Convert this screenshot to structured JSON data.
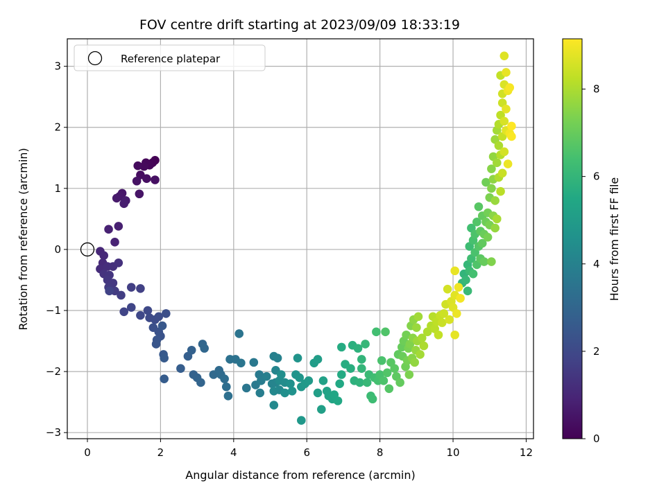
{
  "chart_data": {
    "type": "scatter",
    "title": "FOV centre drift starting at 2023/09/09 18:33:19",
    "xlabel": "Angular distance from reference (arcmin)",
    "ylabel": "Rotation from reference (arcmin)",
    "xlim": [
      -0.55,
      12.2
    ],
    "ylim": [
      -3.1,
      3.45
    ],
    "xticks": [
      0,
      2,
      4,
      6,
      8,
      10,
      12
    ],
    "xtick_labels": [
      "0",
      "2",
      "4",
      "6",
      "8",
      "10",
      "12"
    ],
    "yticks": [
      -3,
      -2,
      -1,
      0,
      1,
      2,
      3
    ],
    "ytick_labels": [
      "−3",
      "−2",
      "−1",
      "0",
      "1",
      "2",
      "3"
    ],
    "grid": true,
    "legend": {
      "placement": "upper-left",
      "entries": [
        {
          "label": "Reference platepar",
          "marker": "open-circle"
        }
      ]
    },
    "reference_point": [
      0,
      0
    ],
    "colorbar": {
      "label": "Hours from first FF file",
      "colormap": "viridis",
      "range": [
        0,
        9.15
      ],
      "ticks": [
        0,
        2,
        4,
        6,
        8
      ],
      "tick_labels": [
        "0",
        "2",
        "4",
        "6",
        "8"
      ]
    },
    "series": [
      {
        "color_by": "hours_from_first_ff_file",
        "points": [
          [
            1.85,
            1.46,
            0.0
          ],
          [
            1.78,
            1.42,
            0.05
          ],
          [
            1.7,
            1.38,
            0.1
          ],
          [
            1.6,
            1.42,
            0.15
          ],
          [
            1.55,
            1.36,
            0.2
          ],
          [
            1.38,
            1.37,
            0.25
          ],
          [
            1.45,
            1.22,
            0.3
          ],
          [
            1.62,
            1.16,
            0.35
          ],
          [
            1.85,
            1.14,
            0.4
          ],
          [
            1.35,
            1.12,
            0.45
          ],
          [
            1.42,
            0.91,
            0.5
          ],
          [
            0.95,
            0.92,
            0.55
          ],
          [
            0.88,
            0.87,
            0.6
          ],
          [
            0.8,
            0.84,
            0.65
          ],
          [
            1.05,
            0.8,
            0.7
          ],
          [
            1.0,
            0.75,
            0.75
          ],
          [
            0.85,
            0.38,
            0.8
          ],
          [
            0.58,
            0.33,
            0.85
          ],
          [
            0.75,
            0.12,
            0.9
          ],
          [
            0.35,
            -0.03,
            1.0
          ],
          [
            0.45,
            -0.1,
            1.05
          ],
          [
            0.42,
            -0.22,
            1.1
          ],
          [
            0.35,
            -0.32,
            1.15
          ],
          [
            0.55,
            -0.28,
            1.2
          ],
          [
            0.7,
            -0.28,
            1.25
          ],
          [
            0.85,
            -0.22,
            1.3
          ],
          [
            0.45,
            -0.4,
            1.35
          ],
          [
            0.6,
            -0.42,
            1.4
          ],
          [
            0.55,
            -0.5,
            1.45
          ],
          [
            0.7,
            -0.55,
            1.5
          ],
          [
            0.58,
            -0.62,
            1.55
          ],
          [
            0.75,
            -0.68,
            1.6
          ],
          [
            0.92,
            -0.75,
            1.65
          ],
          [
            1.2,
            -0.62,
            1.7
          ],
          [
            1.45,
            -0.64,
            1.75
          ],
          [
            0.6,
            -0.68,
            1.8
          ],
          [
            1.0,
            -1.02,
            1.85
          ],
          [
            1.2,
            -0.95,
            1.9
          ],
          [
            1.45,
            -1.08,
            1.95
          ],
          [
            1.65,
            -1.0,
            2.0
          ],
          [
            1.7,
            -1.12,
            2.05
          ],
          [
            1.85,
            -1.15,
            2.1
          ],
          [
            1.95,
            -1.1,
            2.15
          ],
          [
            2.15,
            -1.05,
            2.2
          ],
          [
            1.8,
            -1.28,
            2.25
          ],
          [
            1.95,
            -1.35,
            2.3
          ],
          [
            2.0,
            -1.42,
            2.35
          ],
          [
            1.9,
            -1.48,
            2.4
          ],
          [
            1.88,
            -1.55,
            2.45
          ],
          [
            2.05,
            -1.25,
            2.5
          ],
          [
            2.08,
            -1.72,
            2.55
          ],
          [
            2.1,
            -1.78,
            2.6
          ],
          [
            2.1,
            -2.12,
            2.65
          ],
          [
            2.55,
            -1.95,
            2.7
          ],
          [
            2.75,
            -1.75,
            2.75
          ],
          [
            2.85,
            -1.65,
            2.8
          ],
          [
            2.9,
            -2.05,
            2.85
          ],
          [
            3.0,
            -2.1,
            2.9
          ],
          [
            3.1,
            -2.18,
            2.95
          ],
          [
            3.15,
            -1.55,
            3.0
          ],
          [
            3.2,
            -1.62,
            3.05
          ],
          [
            3.45,
            -2.05,
            3.1
          ],
          [
            3.6,
            -1.98,
            3.15
          ],
          [
            3.65,
            -2.05,
            3.2
          ],
          [
            3.75,
            -2.12,
            3.25
          ],
          [
            3.8,
            -2.25,
            3.3
          ],
          [
            3.85,
            -2.4,
            3.35
          ],
          [
            3.9,
            -1.8,
            3.4
          ],
          [
            4.05,
            -1.8,
            3.45
          ],
          [
            4.15,
            -1.38,
            3.5
          ],
          [
            4.2,
            -1.86,
            3.55
          ],
          [
            4.35,
            -2.27,
            3.6
          ],
          [
            4.55,
            -1.85,
            3.65
          ],
          [
            4.6,
            -2.22,
            3.7
          ],
          [
            4.7,
            -2.05,
            3.75
          ],
          [
            4.75,
            -2.15,
            3.8
          ],
          [
            4.72,
            -2.35,
            3.85
          ],
          [
            4.9,
            -2.08,
            3.9
          ],
          [
            5.1,
            -1.75,
            3.95
          ],
          [
            5.2,
            -1.78,
            4.0
          ],
          [
            5.05,
            -2.2,
            4.05
          ],
          [
            5.15,
            -2.18,
            4.1
          ],
          [
            5.15,
            -1.98,
            4.15
          ],
          [
            5.25,
            -2.3,
            4.2
          ],
          [
            5.1,
            -2.32,
            4.25
          ],
          [
            5.1,
            -2.55,
            4.3
          ],
          [
            5.25,
            -2.15,
            4.35
          ],
          [
            5.4,
            -2.18,
            4.4
          ],
          [
            5.3,
            -2.05,
            4.45
          ],
          [
            5.4,
            -2.35,
            4.5
          ],
          [
            5.55,
            -2.2,
            4.55
          ],
          [
            5.6,
            -2.32,
            4.6
          ],
          [
            5.7,
            -2.05,
            4.65
          ],
          [
            5.75,
            -1.78,
            4.7
          ],
          [
            5.8,
            -2.1,
            4.75
          ],
          [
            5.85,
            -2.25,
            4.8
          ],
          [
            5.85,
            -2.8,
            4.85
          ],
          [
            5.95,
            -2.2,
            4.9
          ],
          [
            6.05,
            -2.15,
            4.95
          ],
          [
            6.2,
            -1.86,
            5.0
          ],
          [
            6.3,
            -1.8,
            5.05
          ],
          [
            6.3,
            -2.35,
            5.1
          ],
          [
            6.4,
            -2.62,
            5.15
          ],
          [
            6.45,
            -2.15,
            5.2
          ],
          [
            6.55,
            -2.32,
            5.25
          ],
          [
            6.6,
            -2.4,
            5.3
          ],
          [
            6.7,
            -2.45,
            5.35
          ],
          [
            6.75,
            -2.38,
            5.4
          ],
          [
            6.85,
            -2.48,
            5.45
          ],
          [
            6.9,
            -2.2,
            5.5
          ],
          [
            6.95,
            -2.05,
            5.55
          ],
          [
            6.95,
            -1.6,
            5.6
          ],
          [
            7.05,
            -1.88,
            5.65
          ],
          [
            7.2,
            -1.95,
            5.7
          ],
          [
            7.25,
            -1.57,
            5.75
          ],
          [
            7.3,
            -2.15,
            5.8
          ],
          [
            7.4,
            -1.62,
            5.85
          ],
          [
            7.45,
            -2.18,
            5.9
          ],
          [
            7.5,
            -1.8,
            5.95
          ],
          [
            7.5,
            -1.95,
            6.0
          ],
          [
            7.6,
            -1.55,
            6.05
          ],
          [
            7.65,
            -2.18,
            6.1
          ],
          [
            7.7,
            -2.05,
            6.15
          ],
          [
            7.75,
            -2.4,
            6.2
          ],
          [
            7.8,
            -2.45,
            6.25
          ],
          [
            7.85,
            -2.1,
            6.3
          ],
          [
            7.9,
            -1.35,
            6.35
          ],
          [
            7.95,
            -2.15,
            6.4
          ],
          [
            8.0,
            -2.05,
            6.45
          ],
          [
            8.05,
            -1.82,
            6.5
          ],
          [
            8.1,
            -2.15,
            6.55
          ],
          [
            8.15,
            -1.35,
            6.6
          ],
          [
            8.2,
            -2.02,
            6.65
          ],
          [
            8.25,
            -2.28,
            6.7
          ],
          [
            8.3,
            -1.85,
            6.75
          ],
          [
            8.4,
            -1.95,
            6.8
          ],
          [
            8.45,
            -2.08,
            6.85
          ],
          [
            8.5,
            -1.72,
            6.9
          ],
          [
            8.55,
            -2.18,
            6.95
          ],
          [
            8.6,
            -1.6,
            7.0
          ],
          [
            8.62,
            -1.75,
            7.05
          ],
          [
            8.65,
            -1.5,
            7.1
          ],
          [
            8.7,
            -1.92,
            7.15
          ],
          [
            8.72,
            -1.4,
            7.2
          ],
          [
            8.75,
            -1.82,
            7.25
          ],
          [
            8.78,
            -1.62,
            7.3
          ],
          [
            8.8,
            -2.05,
            7.35
          ],
          [
            8.82,
            -1.55,
            7.4
          ],
          [
            8.85,
            -1.25,
            7.45
          ],
          [
            8.88,
            -1.78,
            7.5
          ],
          [
            8.9,
            -1.45,
            7.55
          ],
          [
            8.92,
            -1.15,
            7.6
          ],
          [
            8.95,
            -1.85,
            7.65
          ],
          [
            8.98,
            -1.65,
            7.7
          ],
          [
            9.0,
            -1.28,
            7.75
          ],
          [
            9.02,
            -1.5,
            7.8
          ],
          [
            9.05,
            -1.1,
            7.85
          ],
          [
            9.1,
            -1.72,
            7.9
          ],
          [
            9.15,
            -1.45,
            7.95
          ],
          [
            9.2,
            -1.58,
            8.0
          ],
          [
            9.3,
            -1.35,
            8.05
          ],
          [
            9.4,
            -1.25,
            8.1
          ],
          [
            9.45,
            -1.1,
            8.15
          ],
          [
            9.5,
            -1.3,
            8.2
          ],
          [
            9.55,
            -1.18,
            8.25
          ],
          [
            9.6,
            -1.4,
            8.3
          ],
          [
            9.65,
            -1.08,
            8.35
          ],
          [
            9.7,
            -1.2,
            8.4
          ],
          [
            9.75,
            -1.05,
            8.45
          ],
          [
            9.8,
            -0.9,
            8.5
          ],
          [
            9.85,
            -0.65,
            8.55
          ],
          [
            9.9,
            -1.15,
            8.6
          ],
          [
            9.95,
            -0.85,
            8.65
          ],
          [
            10.0,
            -0.95,
            8.7
          ],
          [
            10.05,
            -0.75,
            8.75
          ],
          [
            10.05,
            -1.4,
            8.8
          ],
          [
            10.05,
            -0.35,
            8.85
          ],
          [
            10.1,
            -1.05,
            8.9
          ],
          [
            10.15,
            -0.62,
            8.95
          ],
          [
            10.2,
            -0.8,
            9.0
          ]
        ]
      }
    ],
    "series_upper_branch": [
      [
        10.25,
        -0.55,
        6.0
      ],
      [
        10.3,
        -0.4,
        5.95
      ],
      [
        10.35,
        -0.5,
        6.1
      ],
      [
        10.4,
        -0.25,
        6.05
      ],
      [
        10.4,
        -0.68,
        6.15
      ],
      [
        10.45,
        -0.35,
        6.2
      ],
      [
        10.45,
        0.05,
        6.25
      ],
      [
        10.5,
        -0.15,
        6.3
      ],
      [
        10.5,
        0.35,
        6.35
      ],
      [
        10.55,
        -0.4,
        6.4
      ],
      [
        10.55,
        0.15,
        6.45
      ],
      [
        10.6,
        -0.05,
        6.5
      ],
      [
        10.6,
        0.25,
        6.55
      ],
      [
        10.65,
        -0.25,
        6.6
      ],
      [
        10.65,
        0.45,
        6.65
      ],
      [
        10.7,
        0.05,
        6.7
      ],
      [
        10.7,
        0.7,
        6.75
      ],
      [
        10.75,
        -0.15,
        6.8
      ],
      [
        10.75,
        0.3,
        6.85
      ],
      [
        10.8,
        0.1,
        6.9
      ],
      [
        10.8,
        0.55,
        6.95
      ],
      [
        10.85,
        -0.2,
        7.0
      ],
      [
        10.85,
        0.25,
        7.05
      ],
      [
        10.9,
        0.45,
        7.1
      ],
      [
        10.9,
        1.1,
        7.15
      ],
      [
        10.95,
        0.6,
        7.2
      ],
      [
        10.95,
        0.2,
        7.25
      ],
      [
        11.0,
        0.4,
        7.3
      ],
      [
        11.0,
        0.85,
        7.35
      ],
      [
        11.05,
        -0.2,
        7.4
      ],
      [
        11.05,
        1.0,
        7.45
      ],
      [
        11.05,
        1.32,
        7.5
      ],
      [
        11.1,
        0.55,
        7.55
      ],
      [
        11.1,
        1.15,
        7.6
      ],
      [
        11.1,
        1.52,
        7.65
      ],
      [
        11.15,
        0.35,
        7.7
      ],
      [
        11.15,
        0.8,
        7.75
      ],
      [
        11.15,
        1.8,
        7.8
      ],
      [
        11.2,
        1.42,
        7.85
      ],
      [
        11.2,
        1.95,
        7.9
      ],
      [
        11.2,
        0.5,
        7.95
      ],
      [
        11.25,
        1.7,
        8.0
      ],
      [
        11.25,
        1.18,
        8.05
      ],
      [
        11.25,
        2.05,
        8.1
      ],
      [
        11.3,
        1.55,
        8.15
      ],
      [
        11.3,
        0.95,
        8.2
      ],
      [
        11.3,
        2.2,
        8.25
      ],
      [
        11.3,
        2.85,
        8.3
      ],
      [
        11.35,
        1.85,
        8.35
      ],
      [
        11.35,
        1.25,
        8.4
      ],
      [
        11.35,
        2.4,
        8.45
      ],
      [
        11.35,
        2.55,
        8.5
      ],
      [
        11.4,
        1.6,
        8.55
      ],
      [
        11.4,
        2.1,
        8.6
      ],
      [
        11.4,
        2.7,
        8.65
      ],
      [
        11.4,
        3.17,
        8.7
      ],
      [
        11.45,
        1.95,
        8.75
      ],
      [
        11.45,
        2.3,
        8.8
      ],
      [
        11.45,
        2.9,
        8.85
      ],
      [
        11.5,
        1.4,
        8.9
      ],
      [
        11.5,
        2.6,
        8.95
      ],
      [
        11.55,
        1.9,
        9.0
      ],
      [
        11.55,
        2.65,
        9.05
      ],
      [
        11.6,
        1.85,
        9.1
      ],
      [
        11.6,
        2.02,
        9.15
      ]
    ]
  }
}
